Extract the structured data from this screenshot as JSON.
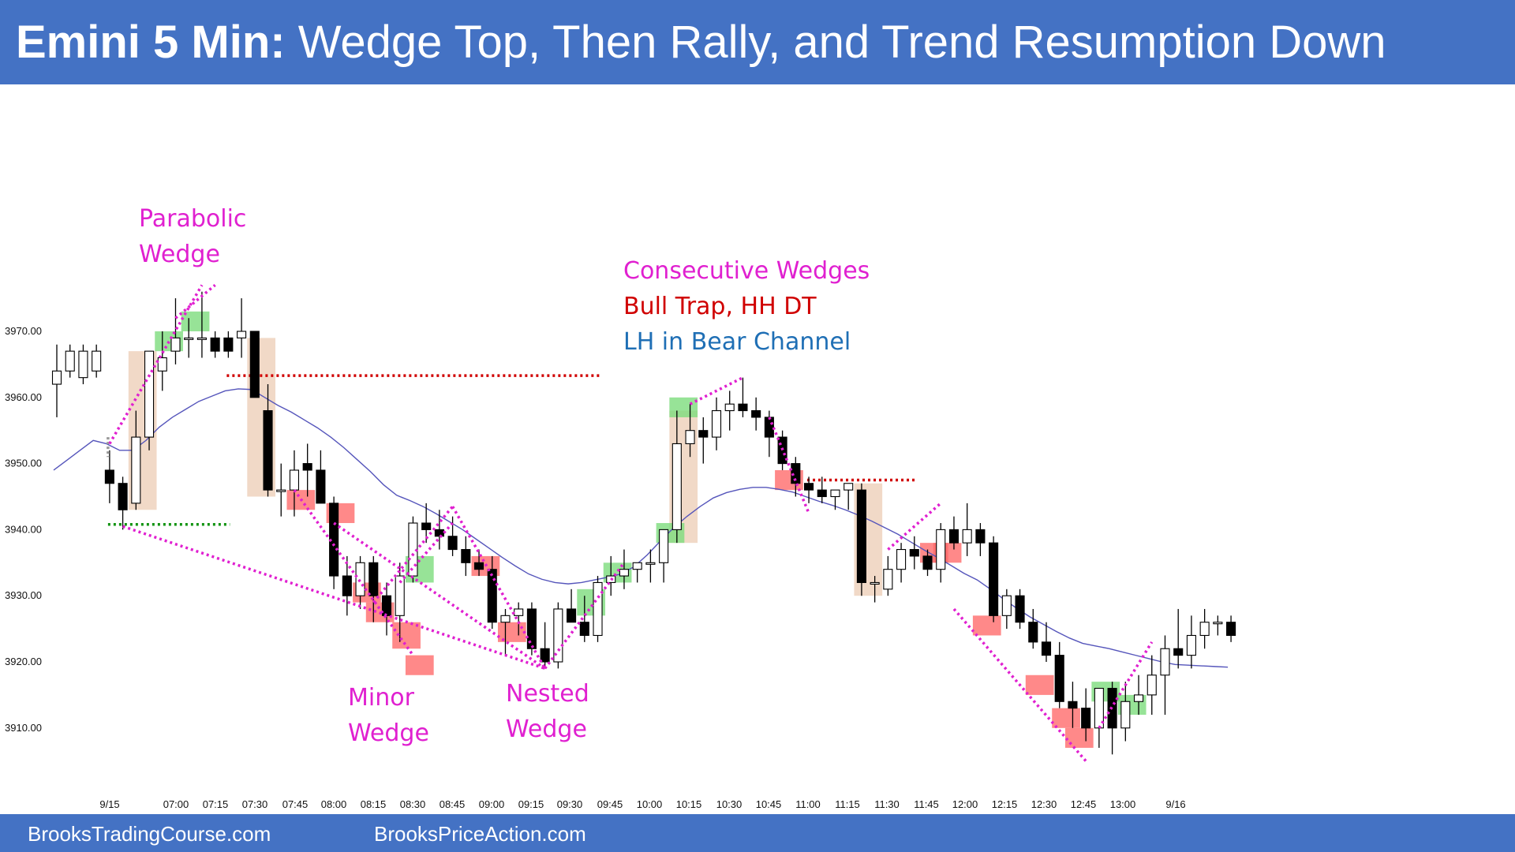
{
  "header": {
    "title_bold": "Emini 5 Min:",
    "title_rest": " Wedge Top, Then Rally, and Trend Resumption Down"
  },
  "footer": {
    "link1": "BrooksTradingCourse.com",
    "link2": "BrooksPriceAction.com"
  },
  "colors": {
    "banner": "#4472c4",
    "annotation_magenta": "#e020d0",
    "annotation_red": "#d00000",
    "annotation_blue": "#1f6fb5",
    "ema_line": "#5555bb",
    "bull_signal_box": "#7ddc7d",
    "bear_signal_box": "#ff6b6b",
    "big_bar_box": "#eed2bd"
  },
  "chart_data": {
    "type": "candlestick",
    "title": "Emini 5 Min",
    "timeframe_minutes": 5,
    "ylim": [
      3903,
      3980
    ],
    "yticks": [
      "3910.00",
      "3920.00",
      "3930.00",
      "3940.00",
      "3950.00",
      "3960.00",
      "3970.00"
    ],
    "xticks": [
      "9/15",
      "07:00",
      "07:15",
      "07:30",
      "07:45",
      "08:00",
      "08:15",
      "08:30",
      "08:45",
      "09:00",
      "09:15",
      "09:30",
      "09:45",
      "10:00",
      "10:15",
      "10:30",
      "10:45",
      "11:00",
      "11:15",
      "11:30",
      "11:45",
      "12:00",
      "12:15",
      "12:30",
      "12:45",
      "13:00",
      "9/16"
    ],
    "grid": false,
    "candles_ohlc": [
      [
        3962,
        3968,
        3957,
        3964
      ],
      [
        3964,
        3968,
        3963,
        3967
      ],
      [
        3963,
        3968,
        3962,
        3967
      ],
      [
        3964,
        3968,
        3963,
        3967
      ],
      [
        3949,
        3952,
        3944,
        3947
      ],
      [
        3947,
        3948,
        3940,
        3943
      ],
      [
        3944,
        3958,
        3943,
        3954
      ],
      [
        3954,
        3967,
        3952,
        3967
      ],
      [
        3964,
        3970,
        3961,
        3966
      ],
      [
        3967,
        3975,
        3965,
        3969
      ],
      [
        3969,
        3972,
        3966,
        3969
      ],
      [
        3969,
        3976,
        3966,
        3969
      ],
      [
        3969,
        3970,
        3966,
        3967
      ],
      [
        3969,
        3970,
        3966,
        3967
      ],
      [
        3969,
        3975,
        3966,
        3970
      ],
      [
        3970,
        3970,
        3962,
        3960
      ],
      [
        3958,
        3962,
        3945,
        3946
      ],
      [
        3946,
        3950,
        3942,
        3946
      ],
      [
        3946,
        3952,
        3942,
        3949
      ],
      [
        3950,
        3953,
        3945,
        3949
      ],
      [
        3949,
        3952,
        3945,
        3944
      ],
      [
        3944,
        3945,
        3931,
        3933
      ],
      [
        3933,
        3936,
        3927,
        3930
      ],
      [
        3930,
        3936,
        3928,
        3935
      ],
      [
        3935,
        3936,
        3926,
        3930
      ],
      [
        3930,
        3932,
        3924,
        3927
      ],
      [
        3927,
        3935,
        3923,
        3933
      ],
      [
        3933,
        3942,
        3932,
        3941
      ],
      [
        3941,
        3944,
        3938,
        3940
      ],
      [
        3940,
        3943,
        3937,
        3939
      ],
      [
        3939,
        3942,
        3936,
        3937
      ],
      [
        3937,
        3939,
        3933,
        3935
      ],
      [
        3935,
        3937,
        3933,
        3934
      ],
      [
        3934,
        3936,
        3925,
        3926
      ],
      [
        3926,
        3928,
        3921,
        3927
      ],
      [
        3927,
        3929,
        3924,
        3928
      ],
      [
        3928,
        3929,
        3921,
        3922
      ],
      [
        3922,
        3926,
        3919,
        3920
      ],
      [
        3920,
        3929,
        3919,
        3928
      ],
      [
        3928,
        3931,
        3926,
        3926
      ],
      [
        3926,
        3930,
        3923,
        3924
      ],
      [
        3924,
        3933,
        3923,
        3932
      ],
      [
        3932,
        3936,
        3930,
        3933
      ],
      [
        3933,
        3937,
        3931,
        3934
      ],
      [
        3934,
        3935,
        3932,
        3935
      ],
      [
        3935,
        3937,
        3932,
        3935
      ],
      [
        3935,
        3940,
        3932,
        3940
      ],
      [
        3940,
        3958,
        3938,
        3953
      ],
      [
        3953,
        3959,
        3951,
        3955
      ],
      [
        3955,
        3957,
        3950,
        3954
      ],
      [
        3954,
        3960,
        3952,
        3958
      ],
      [
        3958,
        3961,
        3955,
        3959
      ],
      [
        3959,
        3963,
        3957,
        3958
      ],
      [
        3958,
        3960,
        3955,
        3957
      ],
      [
        3957,
        3958,
        3951,
        3954
      ],
      [
        3954,
        3955,
        3949,
        3950
      ],
      [
        3950,
        3951,
        3945,
        3947
      ],
      [
        3947,
        3948,
        3944,
        3946
      ],
      [
        3946,
        3948,
        3944,
        3945
      ],
      [
        3945,
        3946,
        3943,
        3946
      ],
      [
        3946,
        3947,
        3943,
        3947
      ],
      [
        3946,
        3947,
        3930,
        3932
      ],
      [
        3932,
        3933,
        3929,
        3932
      ],
      [
        3931,
        3936,
        3930,
        3934
      ],
      [
        3934,
        3938,
        3932,
        3937
      ],
      [
        3937,
        3939,
        3934,
        3936
      ],
      [
        3936,
        3937,
        3933,
        3934
      ],
      [
        3934,
        3941,
        3932,
        3940
      ],
      [
        3940,
        3942,
        3937,
        3938
      ],
      [
        3938,
        3944,
        3936,
        3940
      ],
      [
        3940,
        3941,
        3936,
        3938
      ],
      [
        3938,
        3939,
        3926,
        3927
      ],
      [
        3927,
        3931,
        3925,
        3930
      ],
      [
        3930,
        3931,
        3925,
        3926
      ],
      [
        3926,
        3928,
        3922,
        3923
      ],
      [
        3923,
        3926,
        3920,
        3921
      ],
      [
        3921,
        3923,
        3913,
        3914
      ],
      [
        3914,
        3917,
        3910,
        3913
      ],
      [
        3913,
        3916,
        3908,
        3910
      ],
      [
        3910,
        3916,
        3907,
        3916
      ],
      [
        3916,
        3917,
        3906,
        3910
      ],
      [
        3910,
        3917,
        3908,
        3914
      ],
      [
        3914,
        3918,
        3912,
        3915
      ],
      [
        3915,
        3921,
        3912,
        3918
      ],
      [
        3918,
        3924,
        3912,
        3922
      ],
      [
        3922,
        3928,
        3919,
        3921
      ],
      [
        3921,
        3927,
        3919,
        3924
      ],
      [
        3924,
        3928,
        3922,
        3926
      ],
      [
        3926,
        3927,
        3924,
        3926
      ],
      [
        3926,
        3927,
        3923,
        3924
      ]
    ],
    "ema_20": [
      3949,
      3950.5,
      3952,
      3953.5,
      3953,
      3952,
      3952,
      3953.5,
      3955.5,
      3957,
      3958.2,
      3959.4,
      3960.2,
      3961,
      3961.3,
      3961.2,
      3960,
      3958.8,
      3957.8,
      3956.6,
      3955.4,
      3954,
      3952.4,
      3950.6,
      3948.8,
      3946.8,
      3945.2,
      3944.4,
      3943.5,
      3942.4,
      3941.2,
      3940,
      3938.6,
      3937.2,
      3935.8,
      3934.5,
      3933.3,
      3932.5,
      3932,
      3931.8,
      3932,
      3932.4,
      3932.8,
      3933.3,
      3934.4,
      3936.2,
      3938.3,
      3940.3,
      3942,
      3943.5,
      3944.8,
      3945.6,
      3946.1,
      3946.4,
      3946.4,
      3946.1,
      3945.7,
      3945,
      3944.3,
      3943.7,
      3943,
      3942.2,
      3941.3,
      3940.3,
      3939.3,
      3938.1,
      3936.9,
      3935.8,
      3934.6,
      3933.4,
      3932.4,
      3931,
      3929.5,
      3928.1,
      3926.8,
      3925.7,
      3924.6,
      3923.6,
      3922.8,
      3922.4,
      3922,
      3921.5,
      3921,
      3920.5,
      3920,
      3919.6,
      3919.5,
      3919.4,
      3919.3,
      3919.2
    ],
    "annotations": [
      {
        "text": "Parabolic",
        "color": "magenta"
      },
      {
        "text": "Wedge",
        "color": "magenta"
      },
      {
        "text": "Consecutive Wedges",
        "color": "magenta"
      },
      {
        "text": "Bull Trap, HH DT",
        "color": "red"
      },
      {
        "text": "LH in Bear Channel",
        "color": "blue"
      },
      {
        "text": "Minor",
        "color": "magenta"
      },
      {
        "text": "Wedge",
        "color": "magenta"
      },
      {
        "text": "Nested",
        "color": "magenta"
      },
      {
        "text": "Wedge",
        "color": "magenta"
      }
    ],
    "reference_levels": [
      {
        "price": 3963.3,
        "color": "red",
        "style": "dotted"
      },
      {
        "price": 3947.5,
        "color": "red",
        "style": "dotted"
      },
      {
        "price": 3940.8,
        "color": "green",
        "style": "dotted"
      }
    ],
    "highlight_boxes": [
      {
        "kind": "big_bar",
        "bars": [
          6,
          7
        ],
        "top": 3967,
        "bottom": 3943
      },
      {
        "kind": "big_bar",
        "bars": [
          15,
          16
        ],
        "top": 3969,
        "bottom": 3945
      },
      {
        "kind": "big_bar",
        "bars": [
          47,
          48
        ],
        "top": 3958,
        "bottom": 3938
      },
      {
        "kind": "big_bar",
        "bars": [
          61,
          62
        ],
        "top": 3947,
        "bottom": 3930
      },
      {
        "kind": "bull",
        "bars": [
          8,
          9
        ],
        "top": 3970,
        "bottom": 3967
      },
      {
        "kind": "bull",
        "bars": [
          10,
          11
        ],
        "top": 3973,
        "bottom": 3970
      },
      {
        "kind": "bull",
        "bars": [
          27,
          28
        ],
        "top": 3936,
        "bottom": 3932
      },
      {
        "kind": "bull",
        "bars": [
          40,
          41
        ],
        "top": 3931,
        "bottom": 3927
      },
      {
        "kind": "bull",
        "bars": [
          42,
          43
        ],
        "top": 3935,
        "bottom": 3932
      },
      {
        "kind": "bull",
        "bars": [
          46,
          47
        ],
        "top": 3941,
        "bottom": 3938
      },
      {
        "kind": "bull",
        "bars": [
          47,
          48
        ],
        "top": 3960,
        "bottom": 3957
      },
      {
        "kind": "bull",
        "bars": [
          79,
          80
        ],
        "top": 3917,
        "bottom": 3914
      },
      {
        "kind": "bull",
        "bars": [
          81,
          82
        ],
        "top": 3915,
        "bottom": 3912
      },
      {
        "kind": "bear",
        "bars": [
          18,
          19
        ],
        "top": 3946,
        "bottom": 3943
      },
      {
        "kind": "bear",
        "bars": [
          21,
          22
        ],
        "top": 3944,
        "bottom": 3941
      },
      {
        "kind": "bear",
        "bars": [
          23,
          24
        ],
        "top": 3932,
        "bottom": 3929
      },
      {
        "kind": "bear",
        "bars": [
          24,
          25
        ],
        "top": 3929,
        "bottom": 3926
      },
      {
        "kind": "bear",
        "bars": [
          26,
          27
        ],
        "top": 3926,
        "bottom": 3922
      },
      {
        "kind": "bear",
        "bars": [
          27,
          28
        ],
        "top": 3921,
        "bottom": 3918
      },
      {
        "kind": "bear",
        "bars": [
          32,
          33
        ],
        "top": 3936,
        "bottom": 3933
      },
      {
        "kind": "bear",
        "bars": [
          34,
          35
        ],
        "top": 3926,
        "bottom": 3923
      },
      {
        "kind": "bear",
        "bars": [
          55,
          56
        ],
        "top": 3949,
        "bottom": 3946
      },
      {
        "kind": "bear",
        "bars": [
          66,
          67
        ],
        "top": 3938,
        "bottom": 3935
      },
      {
        "kind": "bear",
        "bars": [
          67,
          68
        ],
        "top": 3938,
        "bottom": 3935
      },
      {
        "kind": "bear",
        "bars": [
          70,
          71
        ],
        "top": 3927,
        "bottom": 3924
      },
      {
        "kind": "bear",
        "bars": [
          74,
          75
        ],
        "top": 3918,
        "bottom": 3915
      },
      {
        "kind": "bear",
        "bars": [
          76,
          77
        ],
        "top": 3913,
        "bottom": 3910
      },
      {
        "kind": "bear",
        "bars": [
          77,
          78
        ],
        "top": 3910,
        "bottom": 3907
      }
    ],
    "wedge_lines": [
      {
        "bars": [
          4,
          11
        ],
        "prices": [
          3953,
          3977
        ],
        "color": "magenta"
      },
      {
        "bars": [
          9,
          12
        ],
        "prices": [
          3972,
          3977
        ],
        "color": "magenta"
      },
      {
        "bars": [
          5,
          37
        ],
        "prices": [
          3940.5,
          3919
        ],
        "color": "magenta"
      },
      {
        "bars": [
          18,
          27
        ],
        "prices": [
          3946,
          3921
        ],
        "color": "magenta"
      },
      {
        "bars": [
          21,
          37
        ],
        "prices": [
          3941,
          3919
        ],
        "color": "magenta"
      },
      {
        "bars": [
          24,
          30
        ],
        "prices": [
          3929,
          3943.5
        ],
        "color": "magenta"
      },
      {
        "bars": [
          26,
          30
        ],
        "prices": [
          3932,
          3941
        ],
        "color": "magenta"
      },
      {
        "bars": [
          30,
          37
        ],
        "prices": [
          3943.5,
          3919
        ],
        "color": "magenta"
      },
      {
        "bars": [
          37,
          43
        ],
        "prices": [
          3919,
          3935
        ],
        "color": "magenta"
      },
      {
        "bars": [
          48,
          52
        ],
        "prices": [
          3959,
          3963
        ],
        "color": "magenta"
      },
      {
        "bars": [
          54,
          57
        ],
        "prices": [
          3957,
          3942.5
        ],
        "color": "magenta"
      },
      {
        "bars": [
          63,
          67
        ],
        "prices": [
          3937,
          3944
        ],
        "color": "magenta"
      },
      {
        "bars": [
          68,
          78
        ],
        "prices": [
          3928,
          3905
        ],
        "color": "magenta"
      },
      {
        "bars": [
          79,
          83
        ],
        "prices": [
          3910,
          3923
        ],
        "color": "magenta"
      }
    ]
  }
}
